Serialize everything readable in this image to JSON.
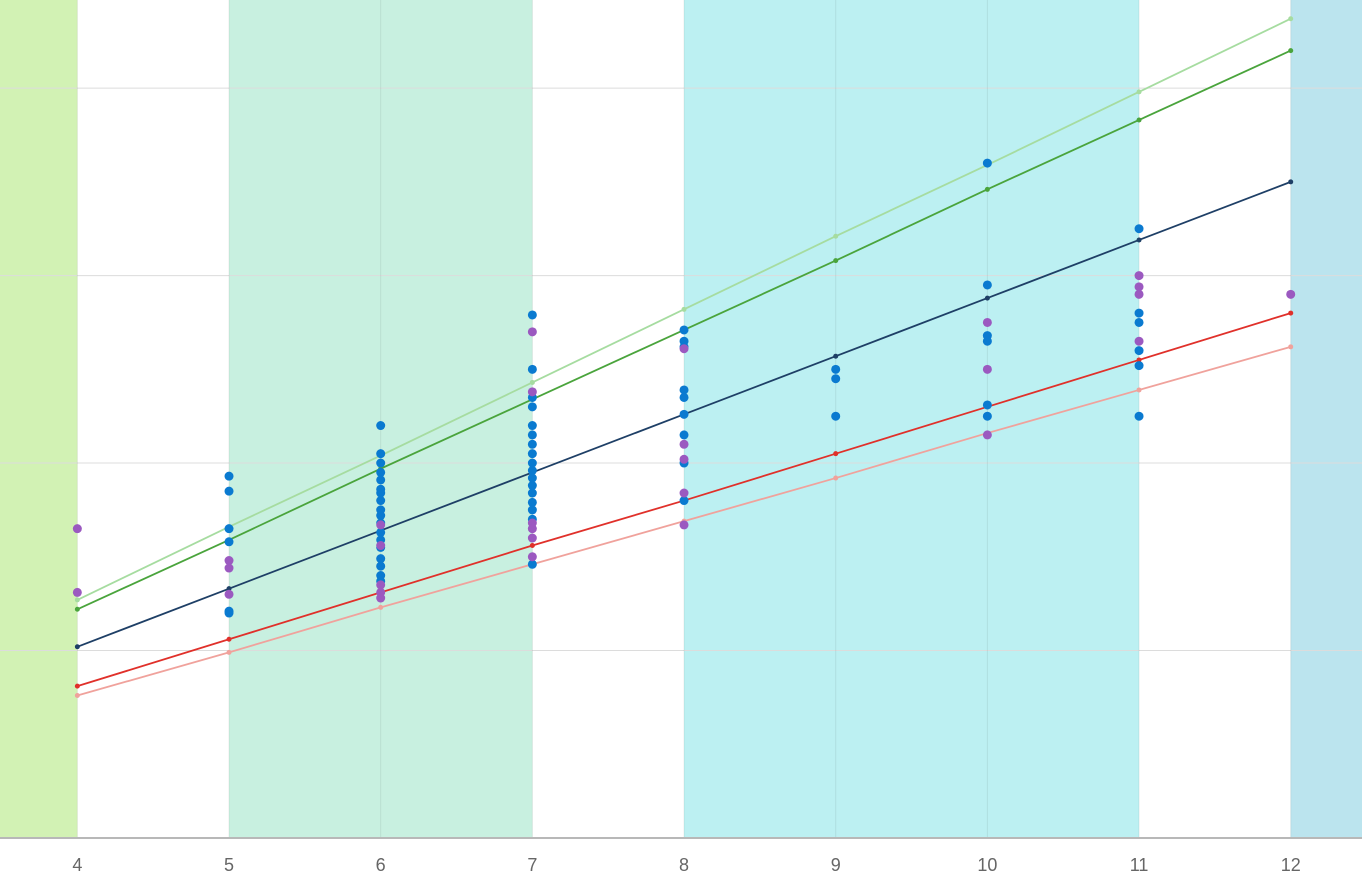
{
  "chart_data": {
    "type": "scatter",
    "xlim": [
      3.49,
      12.47
    ],
    "ylim": [
      0,
      4.47
    ],
    "xticks": [
      4,
      5,
      6,
      7,
      8,
      9,
      10,
      11,
      12
    ],
    "ygrid": [
      1,
      2,
      3,
      4
    ],
    "bands": [
      {
        "from": 3.49,
        "to": 4,
        "color": "#d2f2b4"
      },
      {
        "from": 5,
        "to": 7,
        "color": "#c8f0e0"
      },
      {
        "from": 8,
        "to": 11,
        "color": "#bcf0f2"
      },
      {
        "from": 12,
        "to": 12.47,
        "color": "#bbe4ee"
      }
    ],
    "series": [
      {
        "type": "line",
        "color": "#a6dca0",
        "x": [
          4,
          5,
          6,
          7,
          8,
          9,
          10,
          11,
          12
        ],
        "values": [
          1.27,
          1.66,
          2.04,
          2.43,
          2.82,
          3.21,
          3.59,
          3.98,
          4.37
        ]
      },
      {
        "type": "line",
        "color": "#4aa43c",
        "x": [
          4,
          5,
          6,
          7,
          8,
          9,
          10,
          11,
          12
        ],
        "values": [
          1.22,
          1.59,
          1.97,
          2.34,
          2.71,
          3.08,
          3.46,
          3.83,
          4.2
        ]
      },
      {
        "type": "line",
        "color": "#1e3f66",
        "x": [
          4,
          5,
          6,
          7,
          8,
          9,
          10,
          11,
          12
        ],
        "values": [
          1.02,
          1.33,
          1.64,
          1.95,
          2.26,
          2.57,
          2.88,
          3.19,
          3.5
        ]
      },
      {
        "type": "line",
        "color": "#e0302a",
        "x": [
          4,
          5,
          6,
          7,
          8,
          9,
          10,
          11,
          12
        ],
        "values": [
          0.81,
          1.06,
          1.31,
          1.56,
          1.8,
          2.05,
          2.3,
          2.55,
          2.8
        ]
      },
      {
        "type": "line",
        "color": "#f0a29c",
        "x": [
          4,
          5,
          6,
          7,
          8,
          9,
          10,
          11,
          12
        ],
        "values": [
          0.76,
          0.99,
          1.23,
          1.46,
          1.69,
          1.92,
          2.16,
          2.39,
          2.62
        ]
      },
      {
        "type": "scatter",
        "color": "#0a7ad0",
        "x": [
          5,
          5,
          5,
          5,
          5,
          5,
          6,
          6,
          6,
          6,
          6,
          6,
          6,
          6,
          6,
          6,
          6,
          6,
          6,
          6,
          6,
          6,
          6,
          6,
          7,
          7,
          7,
          7,
          7,
          7,
          7,
          7,
          7,
          7,
          7,
          7,
          7,
          7,
          7,
          7,
          7,
          8,
          8,
          8,
          8,
          8,
          8,
          8,
          8,
          8,
          9,
          9,
          9,
          10,
          10,
          10,
          10,
          10,
          10,
          11,
          11,
          11,
          11,
          11,
          11
        ],
        "values": [
          1.93,
          1.85,
          1.65,
          1.58,
          1.21,
          1.2,
          2.2,
          2.05,
          2.0,
          1.95,
          1.91,
          1.86,
          1.84,
          1.8,
          1.75,
          1.72,
          1.68,
          1.63,
          1.59,
          1.55,
          1.49,
          1.45,
          1.4,
          1.37,
          2.79,
          2.5,
          2.35,
          2.3,
          2.2,
          2.15,
          2.1,
          2.05,
          2.0,
          1.96,
          1.92,
          1.88,
          1.84,
          1.79,
          1.75,
          1.7,
          1.46,
          2.71,
          2.65,
          2.62,
          2.39,
          2.35,
          2.26,
          2.15,
          2.0,
          1.8,
          2.5,
          2.45,
          2.25,
          3.6,
          2.95,
          2.68,
          2.65,
          2.31,
          2.25,
          3.25,
          2.8,
          2.75,
          2.6,
          2.52,
          2.25
        ]
      },
      {
        "type": "scatter",
        "color": "#9b59c0",
        "x": [
          4,
          4,
          5,
          5,
          5,
          6,
          6,
          6,
          6,
          6,
          7,
          7,
          7,
          7,
          7,
          7,
          8,
          8,
          8,
          8,
          8,
          10,
          10,
          10,
          11,
          11,
          11,
          11,
          12
        ],
        "values": [
          1.65,
          1.31,
          1.48,
          1.44,
          1.3,
          1.67,
          1.56,
          1.35,
          1.31,
          1.28,
          2.7,
          2.38,
          1.68,
          1.65,
          1.6,
          1.5,
          2.61,
          2.1,
          2.02,
          1.84,
          1.67,
          2.75,
          2.5,
          2.15,
          3.0,
          2.94,
          2.9,
          2.65,
          2.9
        ]
      }
    ]
  }
}
